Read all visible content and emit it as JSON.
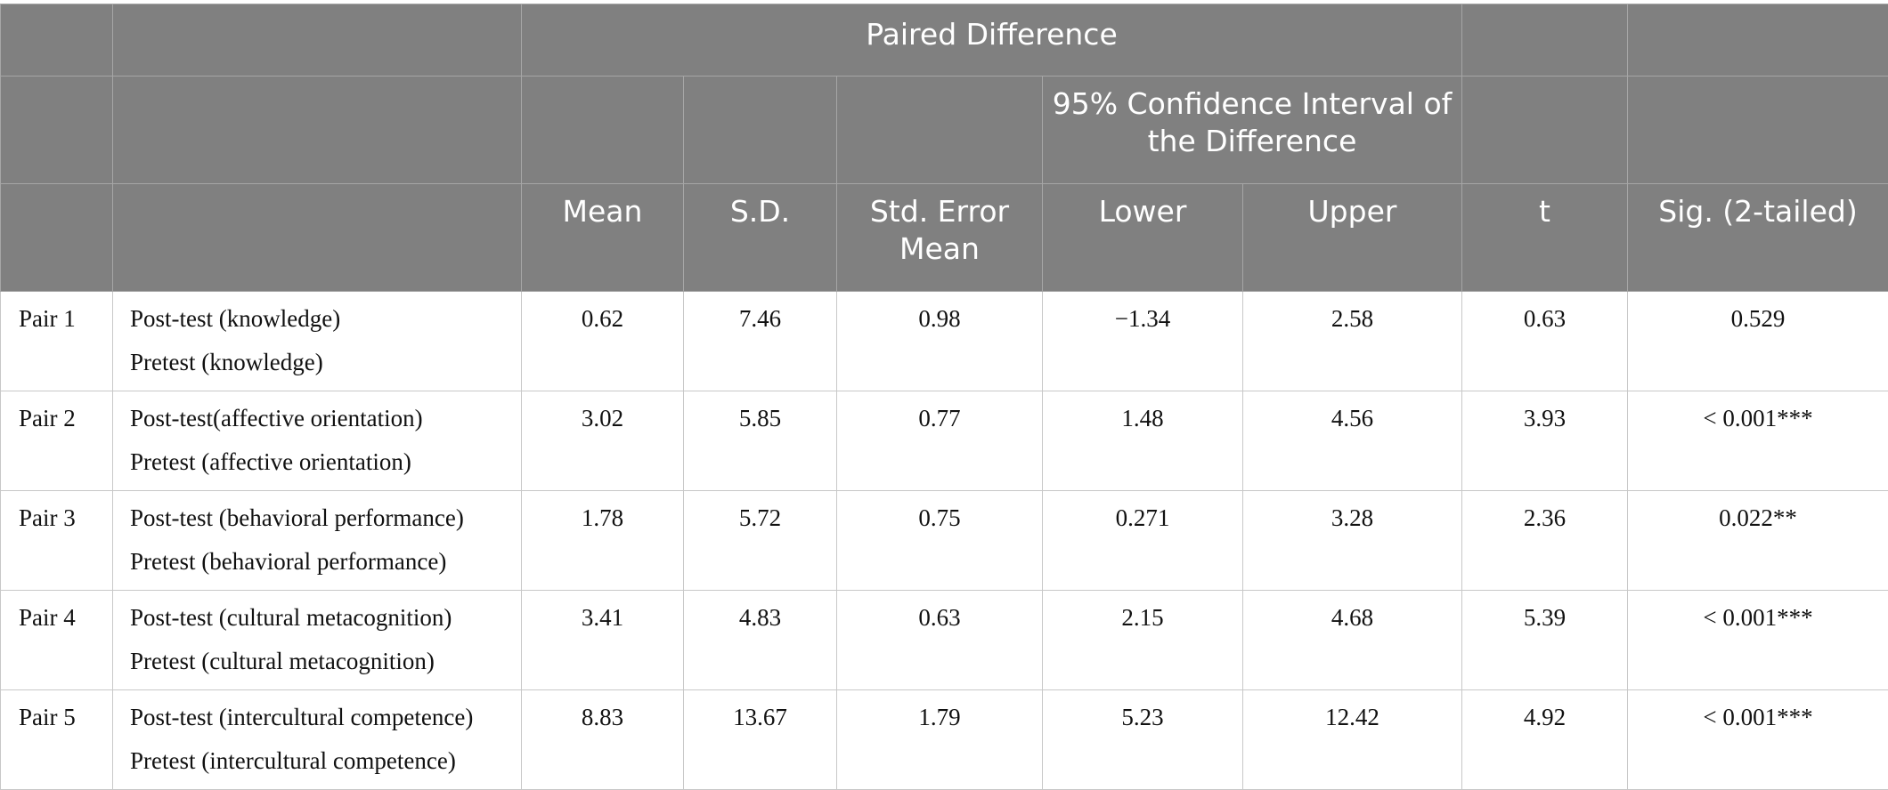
{
  "header": {
    "paired_difference": "Paired Difference",
    "ci_label": "95% Confidence Interval of the Difference",
    "columns": {
      "mean": "Mean",
      "sd": "S.D.",
      "std_error_mean": "Std. Error Mean",
      "lower": "Lower",
      "upper": "Upper",
      "t": "t",
      "sig": "Sig. (2-tailed)"
    }
  },
  "rows": [
    {
      "pair": "Pair 1",
      "post": "Post-test (knowledge)",
      "pre": "Pretest (knowledge)",
      "mean": "0.62",
      "sd": "7.46",
      "sem": "0.98",
      "lower": "−1.34",
      "upper": "2.58",
      "t": "0.63",
      "sig": "0.529"
    },
    {
      "pair": "Pair 2",
      "post": "Post-test(affective orientation)",
      "pre": "Pretest (affective orientation)",
      "mean": "3.02",
      "sd": "5.85",
      "sem": "0.77",
      "lower": "1.48",
      "upper": "4.56",
      "t": "3.93",
      "sig": "< 0.001***"
    },
    {
      "pair": "Pair 3",
      "post": "Post-test (behavioral performance)",
      "pre": "Pretest (behavioral performance)",
      "mean": "1.78",
      "sd": "5.72",
      "sem": "0.75",
      "lower": "0.271",
      "upper": "3.28",
      "t": "2.36",
      "sig": "0.022**"
    },
    {
      "pair": "Pair 4",
      "post": "Post-test (cultural metacognition)",
      "pre": "Pretest (cultural metacognition)",
      "mean": "3.41",
      "sd": "4.83",
      "sem": "0.63",
      "lower": "2.15",
      "upper": "4.68",
      "t": "5.39",
      "sig": "< 0.001***"
    },
    {
      "pair": "Pair 5",
      "post": "Post-test (intercultural competence)",
      "pre": "Pretest (intercultural competence)",
      "mean": "8.83",
      "sd": "13.67",
      "sem": "1.79",
      "lower": "5.23",
      "upper": "12.42",
      "t": "4.92",
      "sig": "< 0.001***"
    }
  ],
  "colors": {
    "header_bg": "#808080",
    "header_text": "#ffffff",
    "grid": "#c8c8c8"
  }
}
